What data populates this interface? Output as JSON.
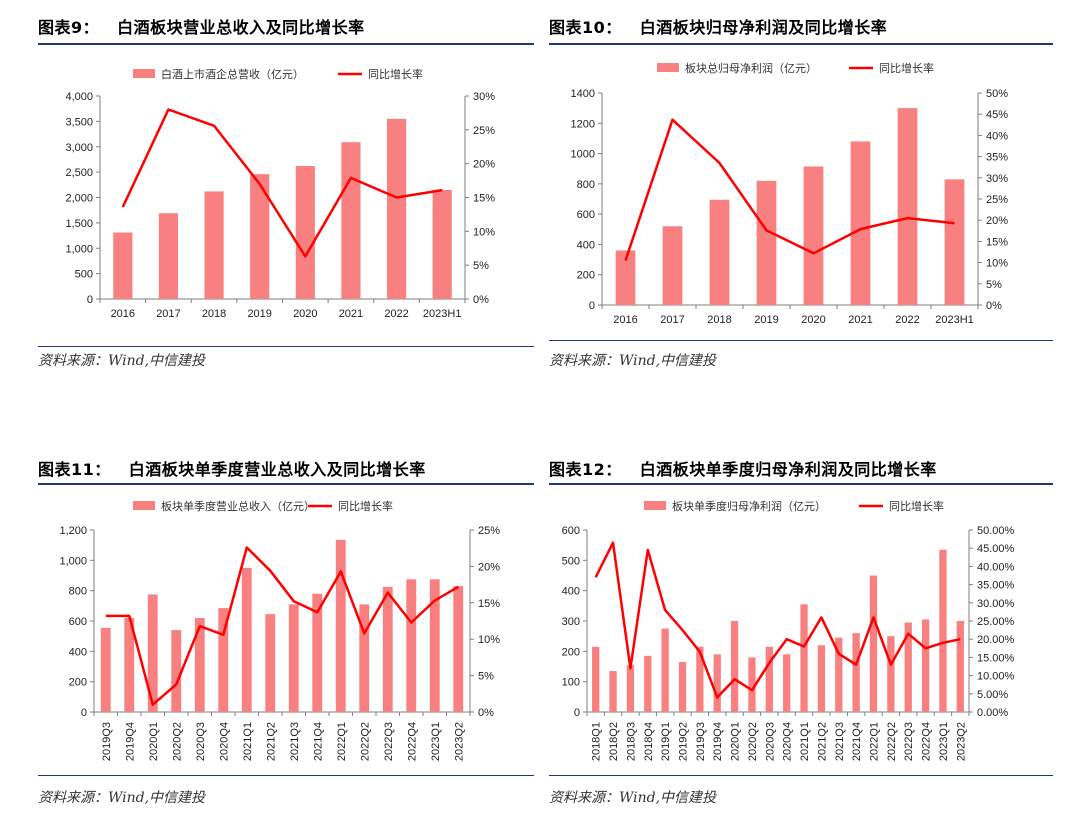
{
  "colors": {
    "bar": "#f98080",
    "line": "#ff0000",
    "rule": "#1f3a73",
    "axis": "#7f7f7f"
  },
  "charts": [
    {
      "fig_no": "图表9：",
      "title": "白酒板块营业总收入及同比增长率",
      "source": "资料来源：Wind,中信建投",
      "legend_bar": "白酒上市酒企总营收（亿元）",
      "legend_line": "同比增长率",
      "chart_data": {
        "type": "bar+line",
        "categories": [
          "2016",
          "2017",
          "2018",
          "2019",
          "2020",
          "2021",
          "2022",
          "2023H1"
        ],
        "bar_values": [
          1310,
          1690,
          2120,
          2460,
          2620,
          3090,
          3550,
          2150
        ],
        "line_values": [
          13.6,
          28.0,
          25.6,
          17.0,
          6.3,
          17.9,
          15.0,
          16.1
        ],
        "ylim_left": [
          0,
          4000
        ],
        "yticks_left": [
          0,
          500,
          1000,
          1500,
          2000,
          2500,
          3000,
          3500,
          4000
        ],
        "ytick_labels_left": [
          "0",
          "500",
          "1,000",
          "1,500",
          "2,000",
          "2,500",
          "3,000",
          "3,500",
          "4,000"
        ],
        "ylim_right": [
          0,
          30
        ],
        "yticks_right": [
          0,
          5,
          10,
          15,
          20,
          25,
          30
        ],
        "ytick_labels_right": [
          "0%",
          "5%",
          "10%",
          "15%",
          "20%",
          "25%",
          "30%"
        ],
        "rotate_xlabels": false
      }
    },
    {
      "fig_no": "图表10：",
      "title": "白酒板块归母净利润及同比增长率",
      "source": "资料来源：Wind,中信建投",
      "legend_bar": "板块总归母净利润（亿元）",
      "legend_line": "同比增长率",
      "chart_data": {
        "type": "bar+line",
        "categories": [
          "2016",
          "2017",
          "2018",
          "2019",
          "2020",
          "2021",
          "2022",
          "2023H1"
        ],
        "bar_values": [
          360,
          520,
          695,
          820,
          915,
          1080,
          1300,
          830
        ],
        "line_values": [
          10.5,
          43.7,
          33.5,
          17.6,
          12.2,
          17.9,
          20.5,
          19.3
        ],
        "ylim_left": [
          0,
          1400
        ],
        "yticks_left": [
          0,
          200,
          400,
          600,
          800,
          1000,
          1200,
          1400
        ],
        "ytick_labels_left": [
          "0",
          "200",
          "400",
          "600",
          "800",
          "1000",
          "1200",
          "1400"
        ],
        "ylim_right": [
          0,
          50
        ],
        "yticks_right": [
          0,
          5,
          10,
          15,
          20,
          25,
          30,
          35,
          40,
          45,
          50
        ],
        "ytick_labels_right": [
          "0%",
          "5%",
          "10%",
          "15%",
          "20%",
          "25%",
          "30%",
          "35%",
          "40%",
          "45%",
          "50%"
        ],
        "rotate_xlabels": false
      }
    },
    {
      "fig_no": "图表11：",
      "title": "白酒板块单季度营业总收入及同比增长率",
      "source": "资料来源：Wind,中信建投",
      "legend_bar": "板块单季度营业总收入（亿元）",
      "legend_line": "同比增长率",
      "chart_data": {
        "type": "bar+line",
        "categories": [
          "2019Q3",
          "2019Q4",
          "2020Q1",
          "2020Q2",
          "2020Q3",
          "2020Q4",
          "2021Q1",
          "2021Q2",
          "2021Q3",
          "2021Q4",
          "2022Q1",
          "2022Q2",
          "2022Q3",
          "2022Q4",
          "2023Q1",
          "2023Q2"
        ],
        "bar_values": [
          555,
          620,
          775,
          540,
          620,
          685,
          950,
          645,
          710,
          780,
          1135,
          710,
          825,
          875,
          875,
          830
        ],
        "line_values": [
          13.2,
          13.2,
          1.0,
          3.8,
          11.8,
          10.6,
          22.6,
          19.4,
          15.2,
          13.7,
          19.3,
          10.8,
          16.4,
          12.3,
          15.3,
          17.2
        ],
        "ylim_left": [
          0,
          1200
        ],
        "yticks_left": [
          0,
          200,
          400,
          600,
          800,
          1000,
          1200
        ],
        "ytick_labels_left": [
          "0",
          "200",
          "400",
          "600",
          "800",
          "1,000",
          "1,200"
        ],
        "ylim_right": [
          0,
          25
        ],
        "yticks_right": [
          0,
          5,
          10,
          15,
          20,
          25
        ],
        "ytick_labels_right": [
          "0%",
          "5%",
          "10%",
          "15%",
          "20%",
          "25%"
        ],
        "rotate_xlabels": true
      }
    },
    {
      "fig_no": "图表12：",
      "title": "白酒板块单季度归母净利润及同比增长率",
      "source": "资料来源：Wind,中信建投",
      "legend_bar": "板块单季度归母净利润（亿元）",
      "legend_line": "同比增长率",
      "chart_data": {
        "type": "bar+line",
        "categories": [
          "2018Q1",
          "2018Q2",
          "2018Q3",
          "2018Q4",
          "2019Q1",
          "2019Q2",
          "2019Q3",
          "2019Q4",
          "2020Q1",
          "2020Q2",
          "2020Q3",
          "2020Q4",
          "2021Q1",
          "2021Q2",
          "2021Q3",
          "2021Q4",
          "2022Q1",
          "2022Q2",
          "2022Q3",
          "2022Q4",
          "2023Q1",
          "2023Q2"
        ],
        "bar_values": [
          215,
          135,
          155,
          185,
          275,
          165,
          215,
          190,
          300,
          180,
          215,
          190,
          355,
          220,
          245,
          260,
          450,
          250,
          295,
          305,
          535,
          300
        ],
        "line_values": [
          37.0,
          46.5,
          12.0,
          44.5,
          28.0,
          22.5,
          16.5,
          4.0,
          9.0,
          6.0,
          13.5,
          20.0,
          18.0,
          26.0,
          16.0,
          13.0,
          26.0,
          13.0,
          21.5,
          17.5,
          19.0,
          20.0
        ],
        "ylim_left": [
          0,
          600
        ],
        "yticks_left": [
          0,
          100,
          200,
          300,
          400,
          500,
          600
        ],
        "ytick_labels_left": [
          "0",
          "100",
          "200",
          "300",
          "400",
          "500",
          "600"
        ],
        "ylim_right": [
          0,
          50
        ],
        "yticks_right": [
          0,
          5,
          10,
          15,
          20,
          25,
          30,
          35,
          40,
          45,
          50
        ],
        "ytick_labels_right": [
          "0.00%",
          "5.00%",
          "10.00%",
          "15.00%",
          "20.00%",
          "25.00%",
          "30.00%",
          "35.00%",
          "40.00%",
          "45.00%",
          "50.00%"
        ],
        "rotate_xlabels": true
      }
    }
  ]
}
